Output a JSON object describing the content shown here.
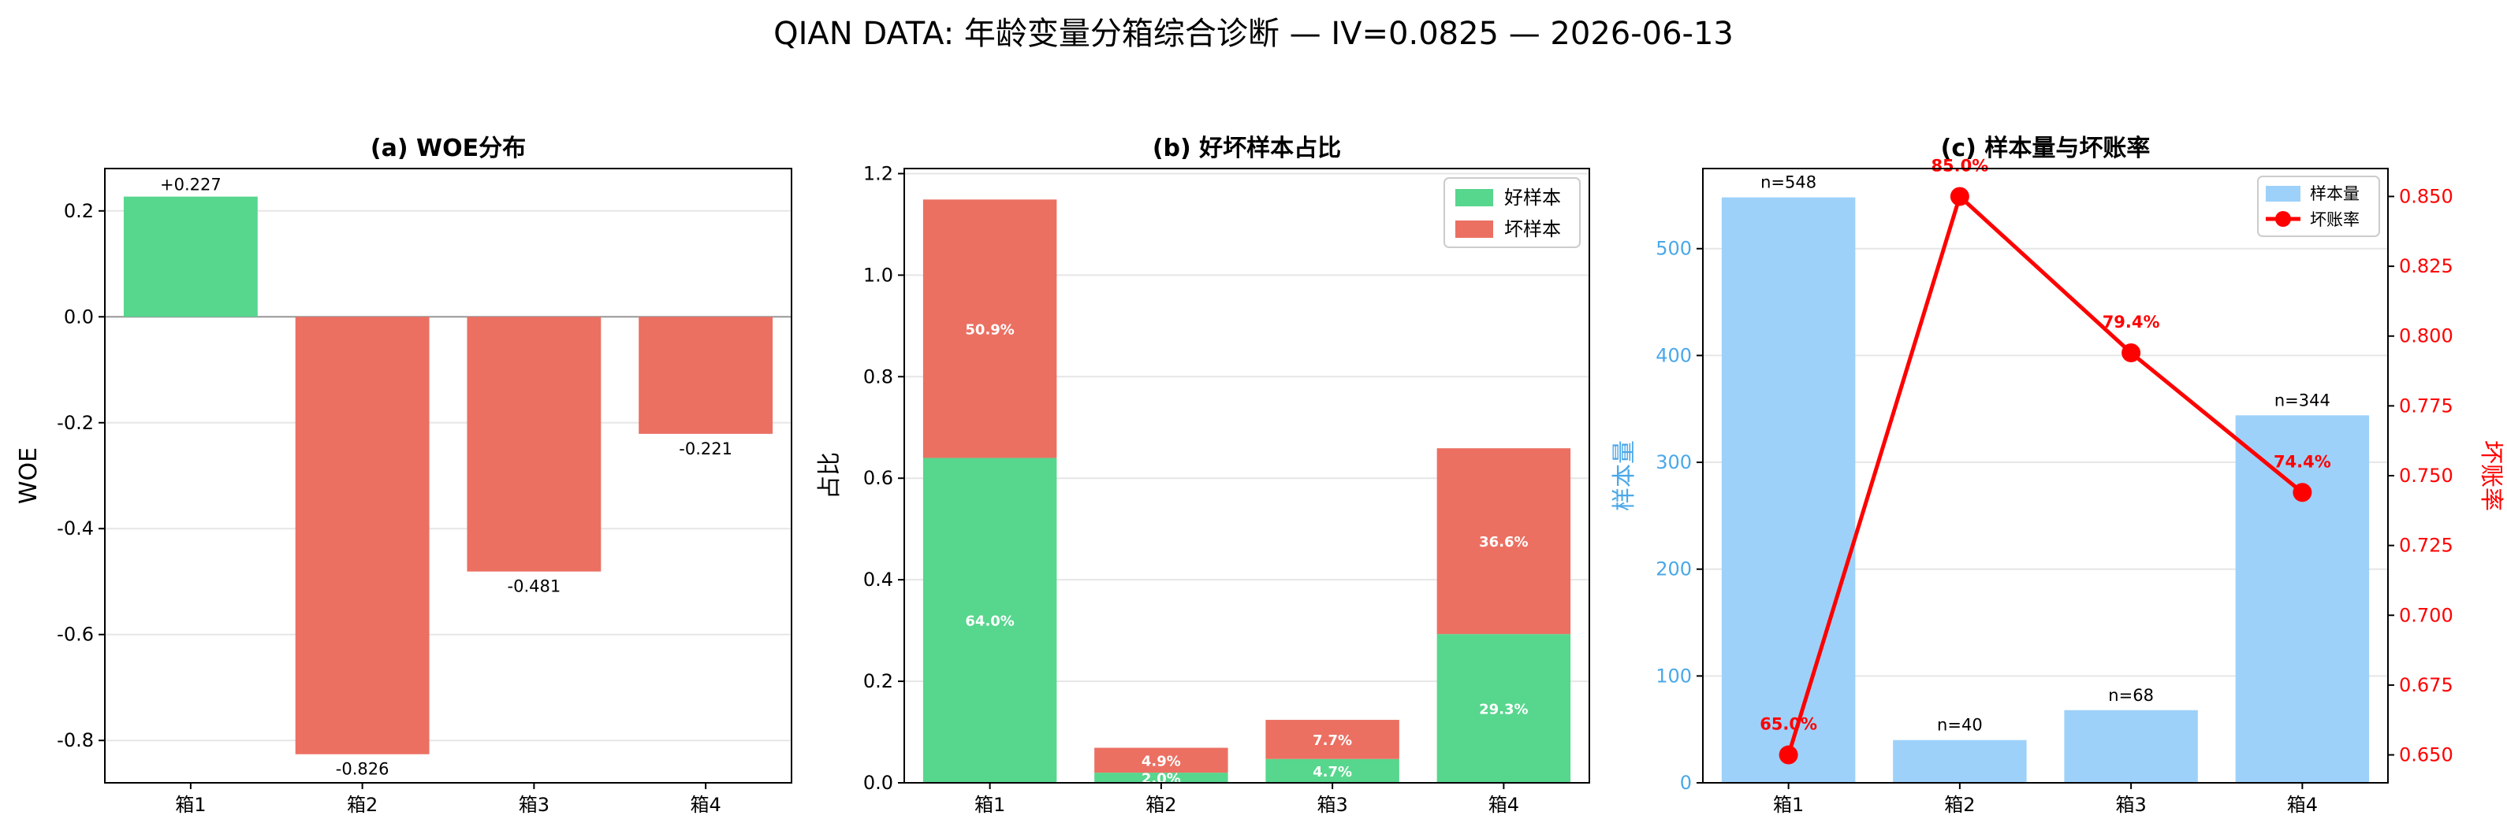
{
  "title": "QIAN DATA: 年龄变量分箱综合诊断 — IV=0.0825 — 2026-06-13",
  "colors": {
    "good": "#57d68d",
    "bad": "#eb7062",
    "sample": "#9dd1fa",
    "rate": "#ff0000",
    "sample_axis": "#4aa8e8"
  },
  "chart_data": [
    {
      "type": "bar",
      "title": "(a) WOE分布",
      "xlabel": "",
      "ylabel": "WOE",
      "categories": [
        "箱1",
        "箱2",
        "箱3",
        "箱4"
      ],
      "values": [
        0.227,
        -0.826,
        -0.481,
        -0.221
      ],
      "data_labels": [
        "+0.227",
        "-0.826",
        "-0.481",
        "-0.221"
      ],
      "ylim": [
        -0.88,
        0.28
      ],
      "yticks": [
        0.2,
        0.0,
        -0.2,
        -0.4,
        -0.6,
        -0.8
      ],
      "ytick_labels": [
        "0.2",
        "0.0",
        "-0.2",
        "-0.4",
        "-0.6",
        "-0.8"
      ],
      "grid": "y"
    },
    {
      "type": "bar",
      "stacked": true,
      "title": "(b) 好坏样本占比",
      "xlabel": "",
      "ylabel": "占比",
      "categories": [
        "箱1",
        "箱2",
        "箱3",
        "箱4"
      ],
      "series": [
        {
          "name": "好样本",
          "values": [
            0.64,
            0.02,
            0.047,
            0.293
          ],
          "data_labels": [
            "64.0%",
            "2.0%",
            "4.7%",
            "29.3%"
          ]
        },
        {
          "name": "坏样本",
          "values": [
            0.509,
            0.049,
            0.077,
            0.366
          ],
          "data_labels": [
            "50.9%",
            "4.9%",
            "7.7%",
            "36.6%"
          ]
        }
      ],
      "ylim": [
        0,
        1.21
      ],
      "yticks": [
        0.0,
        0.2,
        0.4,
        0.6,
        0.8,
        1.0,
        1.2
      ],
      "ytick_labels": [
        "0.0",
        "0.2",
        "0.4",
        "0.6",
        "0.8",
        "1.0",
        "1.2"
      ],
      "legend": "top-right",
      "grid": "y"
    },
    {
      "type": "bar+line",
      "title": "(c) 样本量与坏账率",
      "xlabel": "",
      "categories": [
        "箱1",
        "箱2",
        "箱3",
        "箱4"
      ],
      "series": [
        {
          "name": "样本量",
          "type": "bar",
          "axis": "left",
          "values": [
            548,
            40,
            68,
            344
          ],
          "data_labels": [
            "n=548",
            "n=40",
            "n=68",
            "n=344"
          ]
        },
        {
          "name": "坏账率",
          "type": "line",
          "axis": "right",
          "values": [
            0.65,
            0.85,
            0.794,
            0.744
          ],
          "data_labels": [
            "65.0%",
            "85.0%",
            "79.4%",
            "74.4%"
          ]
        }
      ],
      "ylabel_left": "样本量",
      "ylabel_right": "坏账率",
      "ylim_left": [
        0,
        575
      ],
      "ylim_right": [
        0.64,
        0.86
      ],
      "yticks_left": [
        0,
        100,
        200,
        300,
        400,
        500
      ],
      "ytick_labels_left": [
        "0",
        "100",
        "200",
        "300",
        "400",
        "500"
      ],
      "yticks_right": [
        0.65,
        0.675,
        0.7,
        0.725,
        0.75,
        0.775,
        0.8,
        0.825,
        0.85
      ],
      "ytick_labels_right": [
        "0.650",
        "0.675",
        "0.700",
        "0.725",
        "0.750",
        "0.775",
        "0.800",
        "0.825",
        "0.850"
      ],
      "legend": "top-right",
      "grid": "y"
    }
  ]
}
